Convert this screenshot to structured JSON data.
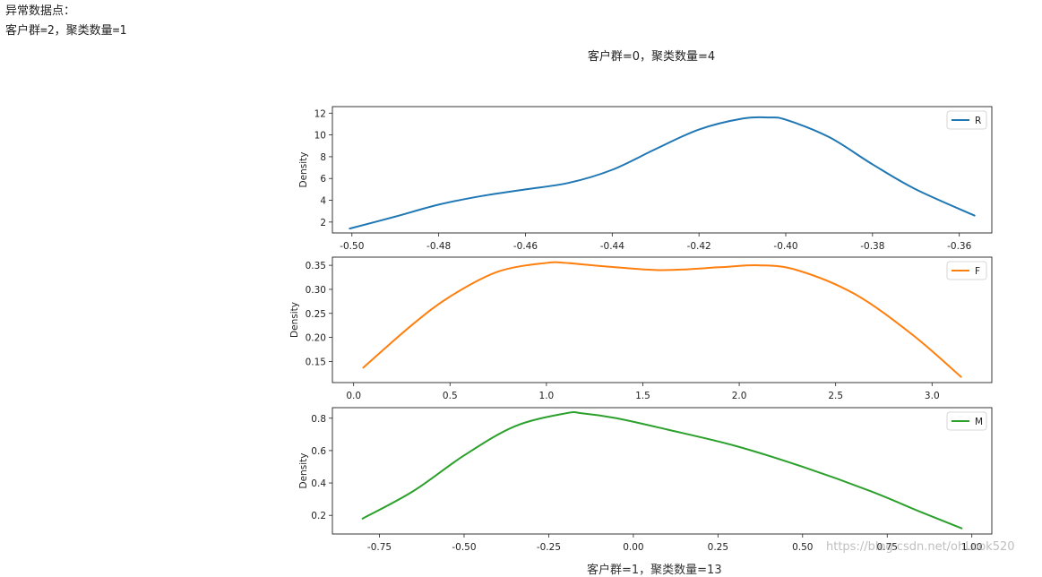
{
  "output": {
    "line1": "异常数据点：",
    "line2": "客户群=2，聚类数量=1"
  },
  "watermark": "https://blog.csdn.net/ohLook520",
  "cut_caption": "客户群=1，聚类数量=13",
  "chart_data": {
    "type": "line",
    "title": "客户群=0，聚类数量=4",
    "subplots": [
      {
        "series": [
          {
            "name": "R",
            "color": "#1f77b4",
            "x": [
              -0.5005,
              -0.49,
              -0.48,
              -0.47,
              -0.46,
              -0.45,
              -0.44,
              -0.43,
              -0.42,
              -0.41,
              -0.404,
              -0.4,
              -0.39,
              -0.38,
              -0.37,
              -0.3565
            ],
            "y": [
              1.4,
              2.5,
              3.6,
              4.4,
              5.0,
              5.6,
              6.8,
              8.7,
              10.5,
              11.5,
              11.6,
              11.4,
              9.8,
              7.3,
              5.0,
              2.6
            ]
          }
        ],
        "xlim": [
          -0.5045,
          -0.3525
        ],
        "ylim": [
          1.0,
          12.6
        ],
        "xticks": [
          -0.5,
          -0.48,
          -0.46,
          -0.44,
          -0.42,
          -0.4,
          -0.38,
          -0.36
        ],
        "xtick_labels": [
          "-0.50",
          "-0.48",
          "-0.46",
          "-0.44",
          "-0.42",
          "-0.40",
          "-0.38",
          "-0.36"
        ],
        "yticks": [
          2,
          4,
          6,
          8,
          10,
          12
        ],
        "ytick_labels": [
          "2",
          "4",
          "6",
          "8",
          "10",
          "12"
        ],
        "ylabel": "Density",
        "legend": "upper right"
      },
      {
        "series": [
          {
            "name": "F",
            "color": "#ff7f0e",
            "x": [
              0.05,
              0.3,
              0.5,
              0.75,
              1.0,
              1.1,
              1.3,
              1.6,
              1.9,
              2.1,
              2.3,
              2.6,
              2.9,
              3.15
            ],
            "y": [
              0.137,
              0.225,
              0.285,
              0.337,
              0.355,
              0.355,
              0.348,
              0.34,
              0.346,
              0.35,
              0.34,
              0.29,
              0.205,
              0.118
            ],
            "marker_fill": "none"
          }
        ],
        "xlim": [
          -0.11,
          3.31
        ],
        "ylim": [
          0.106,
          0.367
        ],
        "xticks": [
          0.0,
          0.5,
          1.0,
          1.5,
          2.0,
          2.5,
          3.0
        ],
        "xtick_labels": [
          "0.0",
          "0.5",
          "1.0",
          "1.5",
          "2.0",
          "2.5",
          "3.0"
        ],
        "yticks": [
          0.15,
          0.2,
          0.25,
          0.3,
          0.35
        ],
        "ytick_labels": [
          "0.15",
          "0.20",
          "0.25",
          "0.30",
          "0.35"
        ],
        "ylabel": "Density",
        "legend": "upper right"
      },
      {
        "series": [
          {
            "name": "M",
            "color": "#2ca02c",
            "x": [
              -0.8,
              -0.65,
              -0.5,
              -0.35,
              -0.2,
              -0.15,
              -0.05,
              0.1,
              0.3,
              0.5,
              0.7,
              0.85,
              0.97
            ],
            "y": [
              0.18,
              0.35,
              0.57,
              0.75,
              0.83,
              0.83,
              0.8,
              0.73,
              0.63,
              0.5,
              0.35,
              0.22,
              0.12
            ],
            "marker_fill": "none"
          }
        ],
        "xlim": [
          -0.889,
          1.059
        ],
        "ylim": [
          0.085,
          0.865
        ],
        "xticks": [
          -0.75,
          -0.5,
          -0.25,
          0.0,
          0.25,
          0.5,
          0.75,
          1.0
        ],
        "xtick_labels": [
          "-0.75",
          "-0.50",
          "-0.25",
          "0.00",
          "0.25",
          "0.50",
          "0.75",
          "1.00"
        ],
        "yticks": [
          0.2,
          0.4,
          0.6,
          0.8
        ],
        "ytick_labels": [
          "0.2",
          "0.4",
          "0.6",
          "0.8"
        ],
        "ylabel": "Density",
        "legend": "upper right"
      }
    ]
  }
}
